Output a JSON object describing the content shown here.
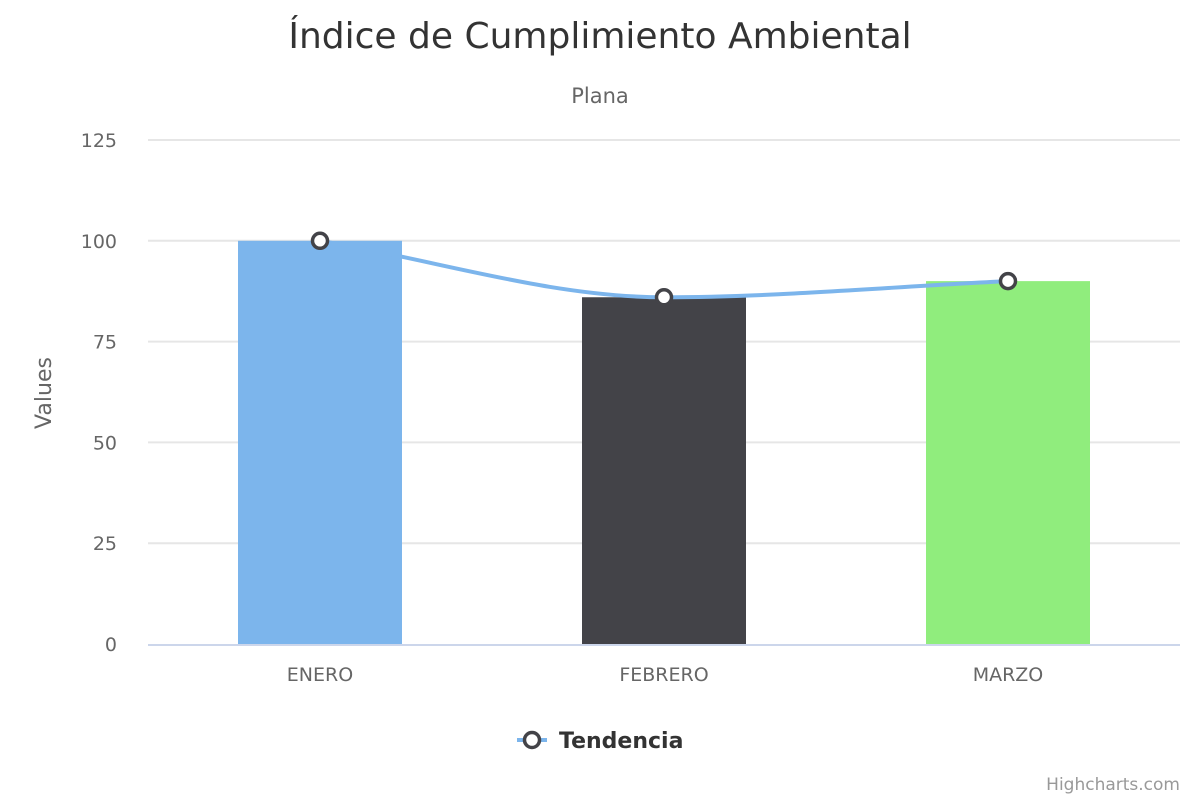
{
  "chart_data": {
    "type": "bar",
    "title": "Índice de Cumplimiento Ambiental",
    "subtitle": "Plana",
    "xlabel": "",
    "ylabel": "Values",
    "categories": [
      "ENERO",
      "FEBRERO",
      "MARZO"
    ],
    "values": [
      100,
      86,
      90
    ],
    "bar_colors": [
      "#7cb5ec",
      "#434348",
      "#90ed7d"
    ],
    "ylim": [
      0,
      125
    ],
    "y_ticks": [
      "0",
      "25",
      "50",
      "75",
      "100",
      "125"
    ],
    "grid": true,
    "series": [
      {
        "name": "Tendencia",
        "type": "spline",
        "values": [
          100,
          86,
          90
        ],
        "color": "#7cb5ec",
        "marker_fill": "#ffffff",
        "marker_stroke": "#434348"
      }
    ],
    "legend": {
      "placement": "bottom-center",
      "items": [
        "Tendencia"
      ]
    }
  },
  "credits": "Highcharts.com"
}
